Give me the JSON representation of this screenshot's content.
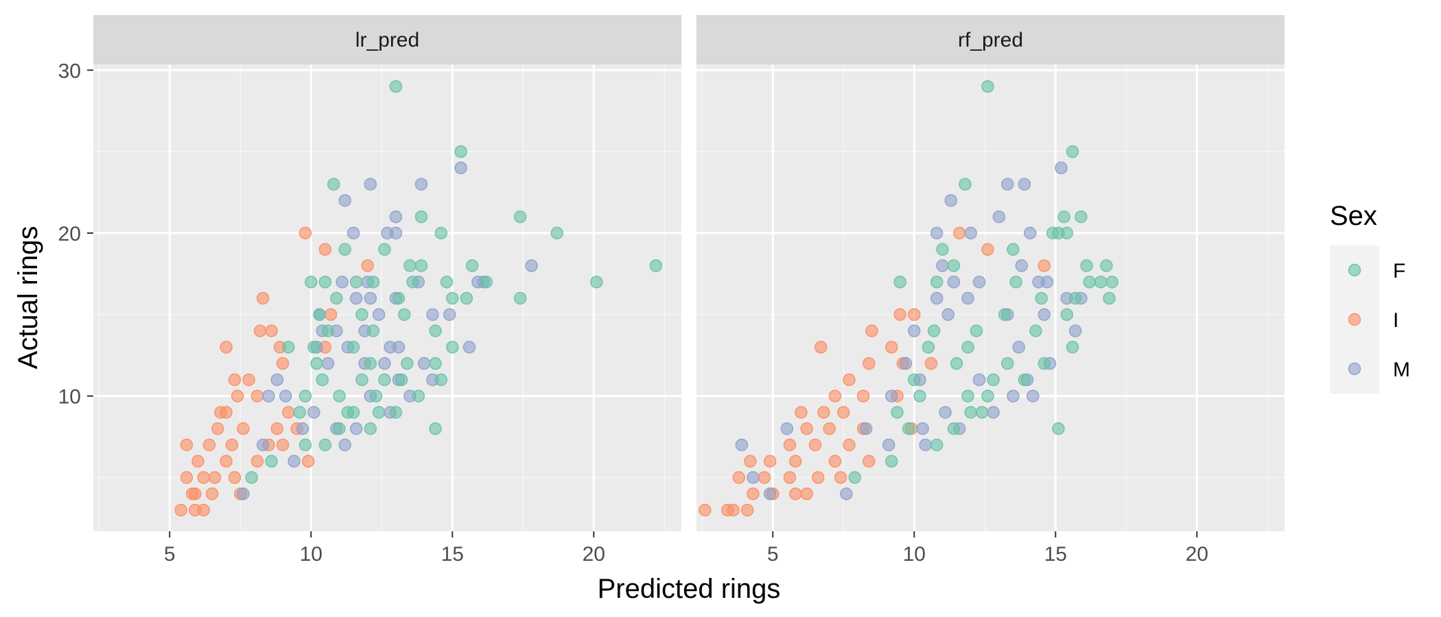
{
  "chart_data": {
    "type": "scatter",
    "facets": [
      "lr_pred",
      "rf_pred"
    ],
    "xlabel": "Predicted rings",
    "ylabel": "Actual rings",
    "xlim": [
      2.3,
      23.1
    ],
    "ylim": [
      1.7,
      30.35
    ],
    "x_ticks": [
      5,
      10,
      15,
      20
    ],
    "y_ticks": [
      10,
      20,
      30
    ],
    "grid": true,
    "legend": {
      "title": "Sex",
      "position": "right",
      "entries": [
        {
          "label": "F",
          "color": "#66C2A5"
        },
        {
          "label": "I",
          "color": "#FC8D62"
        },
        {
          "label": "M",
          "color": "#8DA0CB"
        }
      ]
    },
    "panels": {
      "lr_pred": {
        "F": [
          [
            13.0,
            29
          ],
          [
            15.3,
            25
          ],
          [
            10.8,
            23
          ],
          [
            17.4,
            21
          ],
          [
            13.9,
            21
          ],
          [
            18.7,
            20
          ],
          [
            14.6,
            20
          ],
          [
            11.2,
            19
          ],
          [
            12.6,
            19
          ],
          [
            15.7,
            18
          ],
          [
            13.5,
            18
          ],
          [
            13.9,
            18
          ],
          [
            20.1,
            17
          ],
          [
            22.2,
            18
          ],
          [
            16.2,
            17
          ],
          [
            14.8,
            17
          ],
          [
            13.6,
            17
          ],
          [
            10.0,
            17
          ],
          [
            10.5,
            17
          ],
          [
            11.6,
            17
          ],
          [
            12.2,
            17
          ],
          [
            17.4,
            16
          ],
          [
            15.5,
            16
          ],
          [
            15.0,
            16
          ],
          [
            13.1,
            16
          ],
          [
            10.9,
            16
          ],
          [
            13.3,
            15
          ],
          [
            11.8,
            15
          ],
          [
            10.3,
            15
          ],
          [
            14.4,
            14
          ],
          [
            12.2,
            14
          ],
          [
            10.6,
            14
          ],
          [
            15.0,
            13
          ],
          [
            11.5,
            13
          ],
          [
            9.2,
            13
          ],
          [
            10.1,
            13
          ],
          [
            13.4,
            12
          ],
          [
            12.1,
            12
          ],
          [
            10.2,
            12
          ],
          [
            14.4,
            12
          ],
          [
            11.8,
            11
          ],
          [
            13.2,
            11
          ],
          [
            14.6,
            11
          ],
          [
            10.4,
            11
          ],
          [
            12.6,
            11
          ],
          [
            11.0,
            10
          ],
          [
            13.8,
            10
          ],
          [
            12.3,
            10
          ],
          [
            9.8,
            10
          ],
          [
            11.3,
            9
          ],
          [
            13.0,
            9
          ],
          [
            12.4,
            9
          ],
          [
            9.6,
            9
          ],
          [
            11.5,
            9
          ],
          [
            14.4,
            8
          ],
          [
            12.1,
            8
          ],
          [
            11.0,
            8
          ],
          [
            9.8,
            7
          ],
          [
            10.5,
            7
          ],
          [
            8.6,
            6
          ],
          [
            7.9,
            5
          ]
        ],
        "I": [
          [
            9.8,
            20
          ],
          [
            10.5,
            19
          ],
          [
            12.0,
            18
          ],
          [
            8.3,
            16
          ],
          [
            7.0,
            13
          ],
          [
            8.9,
            13
          ],
          [
            10.7,
            15
          ],
          [
            8.2,
            14
          ],
          [
            8.6,
            14
          ],
          [
            10.5,
            13
          ],
          [
            7.3,
            11
          ],
          [
            9.0,
            12
          ],
          [
            7.8,
            11
          ],
          [
            7.4,
            10
          ],
          [
            8.1,
            10
          ],
          [
            9.2,
            9
          ],
          [
            7.0,
            9
          ],
          [
            6.8,
            9
          ],
          [
            9.5,
            8
          ],
          [
            7.6,
            8
          ],
          [
            6.7,
            8
          ],
          [
            8.8,
            8
          ],
          [
            7.2,
            7
          ],
          [
            6.4,
            7
          ],
          [
            5.6,
            7
          ],
          [
            8.5,
            7
          ],
          [
            9.0,
            7
          ],
          [
            6.0,
            6
          ],
          [
            7.0,
            6
          ],
          [
            8.1,
            6
          ],
          [
            9.9,
            6
          ],
          [
            6.2,
            5
          ],
          [
            5.6,
            5
          ],
          [
            7.3,
            5
          ],
          [
            6.6,
            5
          ],
          [
            5.9,
            4
          ],
          [
            6.5,
            4
          ],
          [
            7.5,
            4
          ],
          [
            5.4,
            3
          ],
          [
            5.9,
            3
          ],
          [
            6.2,
            3
          ],
          [
            5.8,
            4
          ]
        ],
        "M": [
          [
            13.9,
            23
          ],
          [
            15.3,
            24
          ],
          [
            12.1,
            23
          ],
          [
            11.2,
            22
          ],
          [
            13.0,
            21
          ],
          [
            11.5,
            20
          ],
          [
            12.7,
            20
          ],
          [
            13.0,
            20
          ],
          [
            17.8,
            18
          ],
          [
            15.9,
            17
          ],
          [
            13.8,
            17
          ],
          [
            11.1,
            17
          ],
          [
            12.0,
            17
          ],
          [
            16.1,
            17
          ],
          [
            11.6,
            16
          ],
          [
            12.1,
            16
          ],
          [
            13.0,
            16
          ],
          [
            10.3,
            15
          ],
          [
            14.3,
            15
          ],
          [
            14.9,
            15
          ],
          [
            15.6,
            13
          ],
          [
            12.4,
            15
          ],
          [
            11.9,
            14
          ],
          [
            10.4,
            14
          ],
          [
            10.9,
            14
          ],
          [
            13.1,
            13
          ],
          [
            12.8,
            13
          ],
          [
            11.3,
            13
          ],
          [
            10.2,
            13
          ],
          [
            14.0,
            12
          ],
          [
            11.9,
            12
          ],
          [
            12.6,
            12
          ],
          [
            10.6,
            12
          ],
          [
            14.3,
            11
          ],
          [
            8.8,
            11
          ],
          [
            13.1,
            11
          ],
          [
            12.1,
            10
          ],
          [
            13.5,
            10
          ],
          [
            8.5,
            10
          ],
          [
            9.1,
            10
          ],
          [
            10.1,
            9
          ],
          [
            12.8,
            9
          ],
          [
            11.6,
            8
          ],
          [
            9.7,
            8
          ],
          [
            10.9,
            8
          ],
          [
            11.2,
            7
          ],
          [
            8.3,
            7
          ],
          [
            9.4,
            6
          ],
          [
            7.6,
            4
          ]
        ]
      },
      "rf_pred": {
        "F": [
          [
            12.6,
            29
          ],
          [
            15.6,
            25
          ],
          [
            11.8,
            23
          ],
          [
            15.3,
            21
          ],
          [
            15.9,
            21
          ],
          [
            11.0,
            19
          ],
          [
            13.5,
            19
          ],
          [
            11.4,
            18
          ],
          [
            16.1,
            18
          ],
          [
            16.8,
            18
          ],
          [
            15.1,
            20
          ],
          [
            15.4,
            20
          ],
          [
            14.9,
            20
          ],
          [
            13.6,
            17
          ],
          [
            9.5,
            17
          ],
          [
            10.8,
            17
          ],
          [
            16.2,
            17
          ],
          [
            16.6,
            17
          ],
          [
            17.0,
            17
          ],
          [
            15.7,
            16
          ],
          [
            16.9,
            16
          ],
          [
            14.5,
            16
          ],
          [
            15.4,
            15
          ],
          [
            13.2,
            15
          ],
          [
            12.2,
            14
          ],
          [
            10.7,
            14
          ],
          [
            14.3,
            14
          ],
          [
            11.9,
            13
          ],
          [
            15.6,
            13
          ],
          [
            10.5,
            13
          ],
          [
            13.3,
            12
          ],
          [
            11.5,
            12
          ],
          [
            14.6,
            12
          ],
          [
            12.8,
            11
          ],
          [
            10.0,
            11
          ],
          [
            13.9,
            11
          ],
          [
            11.9,
            10
          ],
          [
            12.6,
            10
          ],
          [
            10.2,
            10
          ],
          [
            12.0,
            9
          ],
          [
            9.4,
            9
          ],
          [
            12.4,
            9
          ],
          [
            11.4,
            8
          ],
          [
            15.1,
            8
          ],
          [
            9.8,
            8
          ],
          [
            10.8,
            7
          ],
          [
            9.2,
            6
          ],
          [
            7.9,
            5
          ]
        ],
        "I": [
          [
            11.6,
            20
          ],
          [
            12.6,
            19
          ],
          [
            14.6,
            18
          ],
          [
            8.5,
            14
          ],
          [
            6.7,
            13
          ],
          [
            9.5,
            15
          ],
          [
            10.0,
            15
          ],
          [
            9.2,
            13
          ],
          [
            7.7,
            11
          ],
          [
            9.6,
            12
          ],
          [
            8.4,
            12
          ],
          [
            10.6,
            12
          ],
          [
            7.2,
            10
          ],
          [
            8.2,
            10
          ],
          [
            9.4,
            10
          ],
          [
            6.0,
            9
          ],
          [
            6.8,
            9
          ],
          [
            7.5,
            9
          ],
          [
            6.2,
            8
          ],
          [
            7.0,
            8
          ],
          [
            8.2,
            8
          ],
          [
            9.9,
            8
          ],
          [
            5.6,
            7
          ],
          [
            6.5,
            7
          ],
          [
            7.7,
            7
          ],
          [
            4.9,
            6
          ],
          [
            5.8,
            6
          ],
          [
            7.2,
            6
          ],
          [
            8.4,
            6
          ],
          [
            4.2,
            6
          ],
          [
            3.8,
            5
          ],
          [
            4.7,
            5
          ],
          [
            5.6,
            5
          ],
          [
            6.6,
            5
          ],
          [
            7.4,
            5
          ],
          [
            4.3,
            4
          ],
          [
            5.0,
            4
          ],
          [
            5.8,
            4
          ],
          [
            6.2,
            4
          ],
          [
            3.6,
            3
          ],
          [
            4.1,
            3
          ],
          [
            2.6,
            3
          ],
          [
            3.4,
            3
          ]
        ],
        "M": [
          [
            15.2,
            24
          ],
          [
            13.3,
            23
          ],
          [
            13.9,
            23
          ],
          [
            11.3,
            22
          ],
          [
            13.0,
            21
          ],
          [
            10.8,
            20
          ],
          [
            12.0,
            20
          ],
          [
            14.1,
            20
          ],
          [
            11.0,
            18
          ],
          [
            13.8,
            18
          ],
          [
            14.4,
            17
          ],
          [
            14.7,
            17
          ],
          [
            11.4,
            17
          ],
          [
            12.3,
            17
          ],
          [
            15.4,
            16
          ],
          [
            15.9,
            16
          ],
          [
            10.8,
            16
          ],
          [
            11.9,
            16
          ],
          [
            14.6,
            15
          ],
          [
            13.3,
            15
          ],
          [
            11.2,
            15
          ],
          [
            15.7,
            14
          ],
          [
            10.0,
            14
          ],
          [
            13.7,
            13
          ],
          [
            14.8,
            12
          ],
          [
            9.7,
            12
          ],
          [
            14.0,
            11
          ],
          [
            12.3,
            11
          ],
          [
            10.2,
            11
          ],
          [
            13.5,
            10
          ],
          [
            14.2,
            10
          ],
          [
            9.2,
            10
          ],
          [
            11.1,
            9
          ],
          [
            12.8,
            9
          ],
          [
            10.3,
            8
          ],
          [
            8.3,
            8
          ],
          [
            11.6,
            8
          ],
          [
            9.1,
            7
          ],
          [
            10.4,
            7
          ],
          [
            5.5,
            8
          ],
          [
            3.9,
            7
          ],
          [
            4.3,
            5
          ],
          [
            4.9,
            4
          ],
          [
            7.6,
            4
          ]
        ]
      }
    }
  }
}
